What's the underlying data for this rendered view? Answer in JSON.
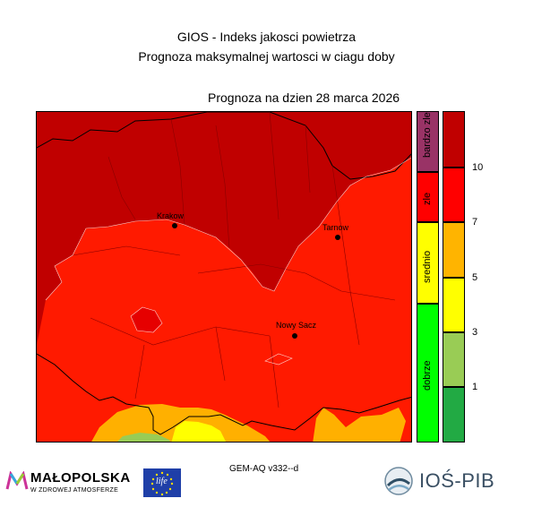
{
  "header": {
    "title_line1": "GIOS - Indeks jakosci powietrza",
    "title_line2": "Prognoza maksymalnej wartosci w ciagu doby",
    "date_label": "Prognoza na dzien  28 marca 2026"
  },
  "map": {
    "cities": [
      {
        "name": "Krakow",
        "label": "Krakow"
      },
      {
        "name": "Tarnow",
        "label": "Tarnow"
      },
      {
        "name": "Nowy Sacz",
        "label": "Nowy Sacz"
      }
    ]
  },
  "legend": {
    "categories": [
      {
        "label": "bardzo zle",
        "color": "#993366"
      },
      {
        "label": "zle",
        "color": "#ff0000"
      },
      {
        "label": "srednio",
        "color": "#ffff00"
      },
      {
        "label": "dobrze",
        "color": "#00ff00"
      }
    ],
    "scale_colors": [
      "#c00000",
      "#ff0000",
      "#ffb400",
      "#ffff00",
      "#99cc55",
      "#22aa44"
    ],
    "ticks": [
      "10",
      "7",
      "5",
      "3",
      "1"
    ]
  },
  "footer": {
    "model_label": "GEM-AQ v332--d",
    "logo_malopolska_main": "MAŁOPOLSKA",
    "logo_malopolska_sub": "W ZDROWEJ ATMOSFERZE",
    "logo_eu_text": "life",
    "logo_ios_text": "IOŚ-PIB"
  }
}
